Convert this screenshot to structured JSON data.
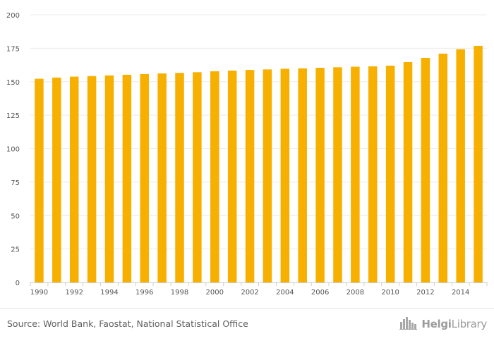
{
  "chart_data": {
    "type": "bar",
    "categories": [
      "1990",
      "1991",
      "1992",
      "1993",
      "1994",
      "1995",
      "1996",
      "1997",
      "1998",
      "1999",
      "2000",
      "2001",
      "2002",
      "2003",
      "2004",
      "2005",
      "2006",
      "2007",
      "2008",
      "2009",
      "2010",
      "2011",
      "2012",
      "2013",
      "2014",
      "2015"
    ],
    "x_tick_labels": [
      "1990",
      "1992",
      "1994",
      "1996",
      "1998",
      "2000",
      "2002",
      "2004",
      "2006",
      "2008",
      "2010",
      "2012",
      "2014"
    ],
    "values": [
      152.2,
      153.1,
      153.8,
      154.2,
      154.7,
      155.2,
      155.7,
      156.2,
      156.6,
      157.1,
      157.8,
      158.3,
      158.8,
      159.2,
      159.7,
      160.0,
      160.4,
      160.8,
      161.2,
      161.5,
      162.0,
      164.7,
      167.8,
      171.0,
      174.3,
      176.8
    ],
    "ylim": [
      0,
      200
    ],
    "y_ticks": [
      0,
      25,
      50,
      75,
      100,
      125,
      150,
      175,
      200
    ],
    "grid": true,
    "legend": "none",
    "title": "",
    "xlabel": "",
    "ylabel": "",
    "colors": {
      "bar": "#F7B000",
      "grid": "#ececec",
      "axis_text": "#555555"
    }
  },
  "footer": {
    "source": "Source: World Bank, Faostat, National Statistical Office",
    "logo_bold": "Helgi",
    "logo_rest": "Library"
  }
}
